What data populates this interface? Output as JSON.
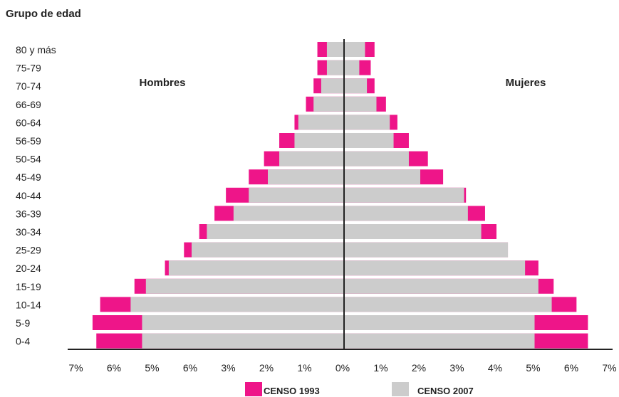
{
  "chart_data": {
    "type": "bar",
    "orientation": "horizontal",
    "layout": "population-pyramid",
    "title": "Grupo de edad",
    "panel_labels": {
      "left": "Hombres",
      "right": "Mujeres"
    },
    "categories": [
      "80 y más",
      "75-79",
      "70-74",
      "66-69",
      "60-64",
      "56-59",
      "50-54",
      "45-49",
      "40-44",
      "36-39",
      "30-34",
      "25-29",
      "20-24",
      "15-19",
      "10-14",
      "5-9",
      "0-4"
    ],
    "x_tick_labels": [
      "7%",
      "6%",
      "5%",
      "6%",
      "3%",
      "2%",
      "1%",
      "0%",
      "1%",
      "2%",
      "3%",
      "4%",
      "5%",
      "6%",
      "7%"
    ],
    "x_unit": "%",
    "xlim": [
      -7,
      7
    ],
    "series": [
      {
        "name": "CENSO 1993",
        "color": "#ee1589",
        "hombres": [
          0.7,
          0.7,
          0.8,
          1.0,
          1.3,
          1.7,
          2.1,
          2.5,
          3.1,
          3.4,
          3.8,
          4.2,
          4.7,
          5.5,
          6.4,
          6.6,
          6.5
        ],
        "mujeres": [
          0.8,
          0.7,
          0.8,
          1.1,
          1.4,
          1.7,
          2.2,
          2.6,
          3.2,
          3.7,
          4.0,
          4.3,
          5.1,
          5.5,
          6.1,
          6.4,
          6.4
        ]
      },
      {
        "name": "CENSO 2007",
        "color": "#cccccc",
        "hombres": [
          0.45,
          0.45,
          0.6,
          0.8,
          1.2,
          1.3,
          1.7,
          2.0,
          2.5,
          2.9,
          3.6,
          4.0,
          4.6,
          5.2,
          5.6,
          5.3,
          5.3
        ],
        "mujeres": [
          0.55,
          0.4,
          0.6,
          0.85,
          1.2,
          1.3,
          1.7,
          2.0,
          3.15,
          3.25,
          3.6,
          4.3,
          4.75,
          5.1,
          5.45,
          5.0,
          5.0
        ]
      }
    ],
    "legend": "bottom",
    "grid": false
  }
}
